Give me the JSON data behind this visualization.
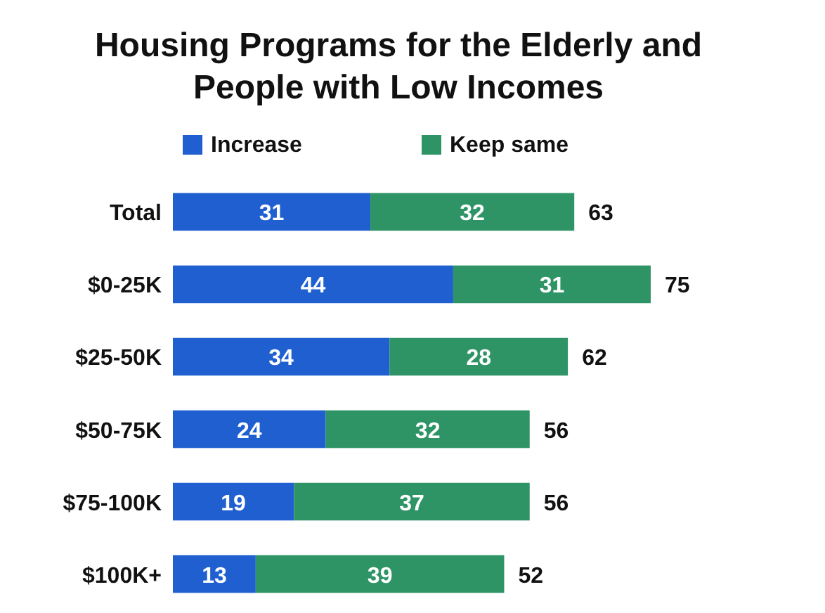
{
  "chart_data": {
    "type": "bar",
    "orientation": "horizontal",
    "stacked": true,
    "title": "Housing Programs for the Elderly and\nPeople with Low Incomes",
    "categories": [
      "Total",
      "$0-25K",
      "$25-50K",
      "$50-75K",
      "$75-100K",
      "$100K+"
    ],
    "series": [
      {
        "name": "Increase",
        "color": "#1f5fd0",
        "values": [
          31,
          44,
          34,
          24,
          19,
          13
        ]
      },
      {
        "name": "Keep same",
        "color": "#2e9466",
        "values": [
          32,
          31,
          28,
          32,
          37,
          39
        ]
      }
    ],
    "data_labels": true,
    "totals": [
      "63",
      "75",
      "62",
      "56",
      "56",
      "52"
    ],
    "legend": "top left"
  }
}
